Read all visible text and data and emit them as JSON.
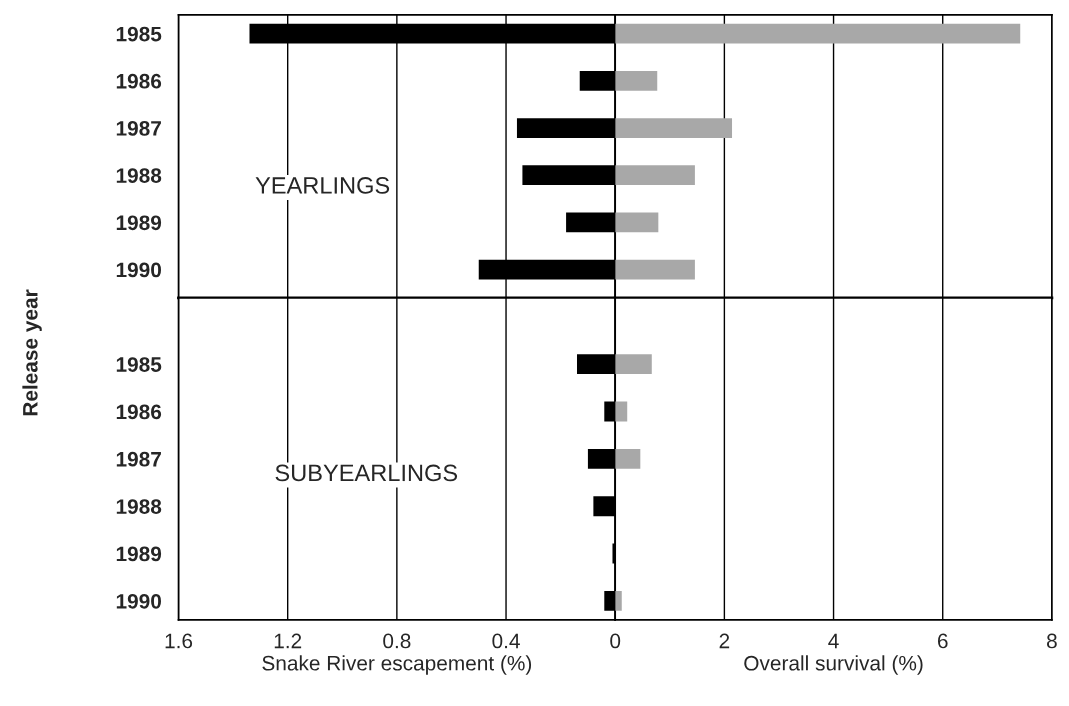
{
  "chart_data": [
    {
      "type": "bar",
      "orientation": "horizontal",
      "ylabel": "Release year",
      "annotations": [
        "YEARLINGS"
      ],
      "categories": [
        "1985",
        "1986",
        "1987",
        "1988",
        "1989",
        "1990"
      ],
      "values": [
        1.34,
        0.13,
        0.36,
        0.34,
        0.18,
        0.5
      ],
      "color": "#000000",
      "xlim": [
        1.6,
        0
      ],
      "xticks": [
        1.6,
        1.2,
        0.8,
        0.4,
        0
      ],
      "grid": "x",
      "tick_labels": "y"
    },
    {
      "type": "bar",
      "orientation": "horizontal",
      "categories": [
        "1985",
        "1986",
        "1987",
        "1988",
        "1989",
        "1990"
      ],
      "values": [
        7.42,
        0.77,
        2.14,
        1.46,
        0.79,
        1.46
      ],
      "color": "#a8a8a8",
      "xlim": [
        0,
        8
      ],
      "xticks": [
        {
          "value": 0,
          "label": null
        },
        2,
        4,
        6,
        8
      ],
      "grid": "x",
      "tick_labels": false
    },
    {
      "type": "bar",
      "orientation": "horizontal",
      "xlabel": "Snake River escapement (%)",
      "annotations": [
        "SUBYEARLINGS"
      ],
      "categories": [
        "1985",
        "1986",
        "1987",
        "1988",
        "1989",
        "1990"
      ],
      "values": [
        0.14,
        0.04,
        0.1,
        0.08,
        0.01,
        0.04
      ],
      "color": "#000000",
      "xlim": [
        1.6,
        0
      ],
      "xticks": [
        1.6,
        1.2,
        0.8,
        0.4,
        0
      ],
      "grid": "x"
    },
    {
      "type": "bar",
      "orientation": "horizontal",
      "xlabel": "Overall survival (%)",
      "categories": [
        "1985",
        "1986",
        "1987",
        "1988",
        "1989",
        "1990"
      ],
      "values": [
        0.67,
        0.22,
        0.46,
        null,
        null,
        0.12
      ],
      "color": "#a8a8a8",
      "xlim": [
        0,
        8
      ],
      "xticks": [
        {
          "value": 0,
          "label": null
        },
        2,
        4,
        6,
        8
      ],
      "grid": "x",
      "tick_labels": "x"
    }
  ]
}
